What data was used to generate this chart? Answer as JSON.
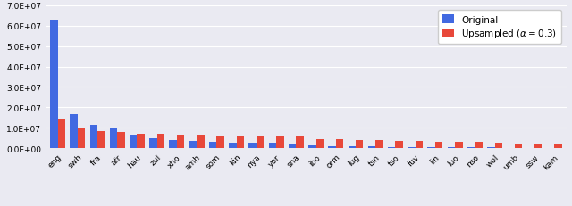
{
  "categories": [
    "eng",
    "swh",
    "fra",
    "afr",
    "hau",
    "zul",
    "xho",
    "amh",
    "som",
    "kin",
    "nya",
    "yor",
    "sna",
    "ibo",
    "orm",
    "lug",
    "tsn",
    "tso",
    "fuv",
    "lin",
    "luo",
    "nso",
    "wol",
    "umb",
    "ssw",
    "kam"
  ],
  "original": [
    63000000,
    16500000,
    11500000,
    9800000,
    6500000,
    4800000,
    3800000,
    3500000,
    3200000,
    2800000,
    2800000,
    2800000,
    1800000,
    1300000,
    1000000,
    800000,
    700000,
    600000,
    500000,
    500000,
    450000,
    400000,
    350000,
    200000,
    150000,
    50000
  ],
  "upsampled": [
    14500000,
    9500000,
    8500000,
    8000000,
    7200000,
    6800000,
    6500000,
    6500000,
    6300000,
    6200000,
    6200000,
    6000000,
    5500000,
    4500000,
    4200000,
    4000000,
    3800000,
    3500000,
    3400000,
    3200000,
    3200000,
    3000000,
    2500000,
    2000000,
    1800000,
    1600000
  ],
  "bar_color_original": "#4169e1",
  "bar_color_upsampled": "#e8483a",
  "background_color": "#eaeaf2",
  "grid_color": "#ffffff",
  "ylim": [
    0,
    70000000.0
  ],
  "yticks": [
    0,
    10000000.0,
    20000000.0,
    30000000.0,
    40000000.0,
    50000000.0,
    60000000.0,
    70000000.0
  ],
  "legend_labels": [
    "Original",
    "Upsampled ($\\alpha = 0.3$)"
  ],
  "tick_fontsize": 6.5,
  "legend_fontsize": 7.5
}
